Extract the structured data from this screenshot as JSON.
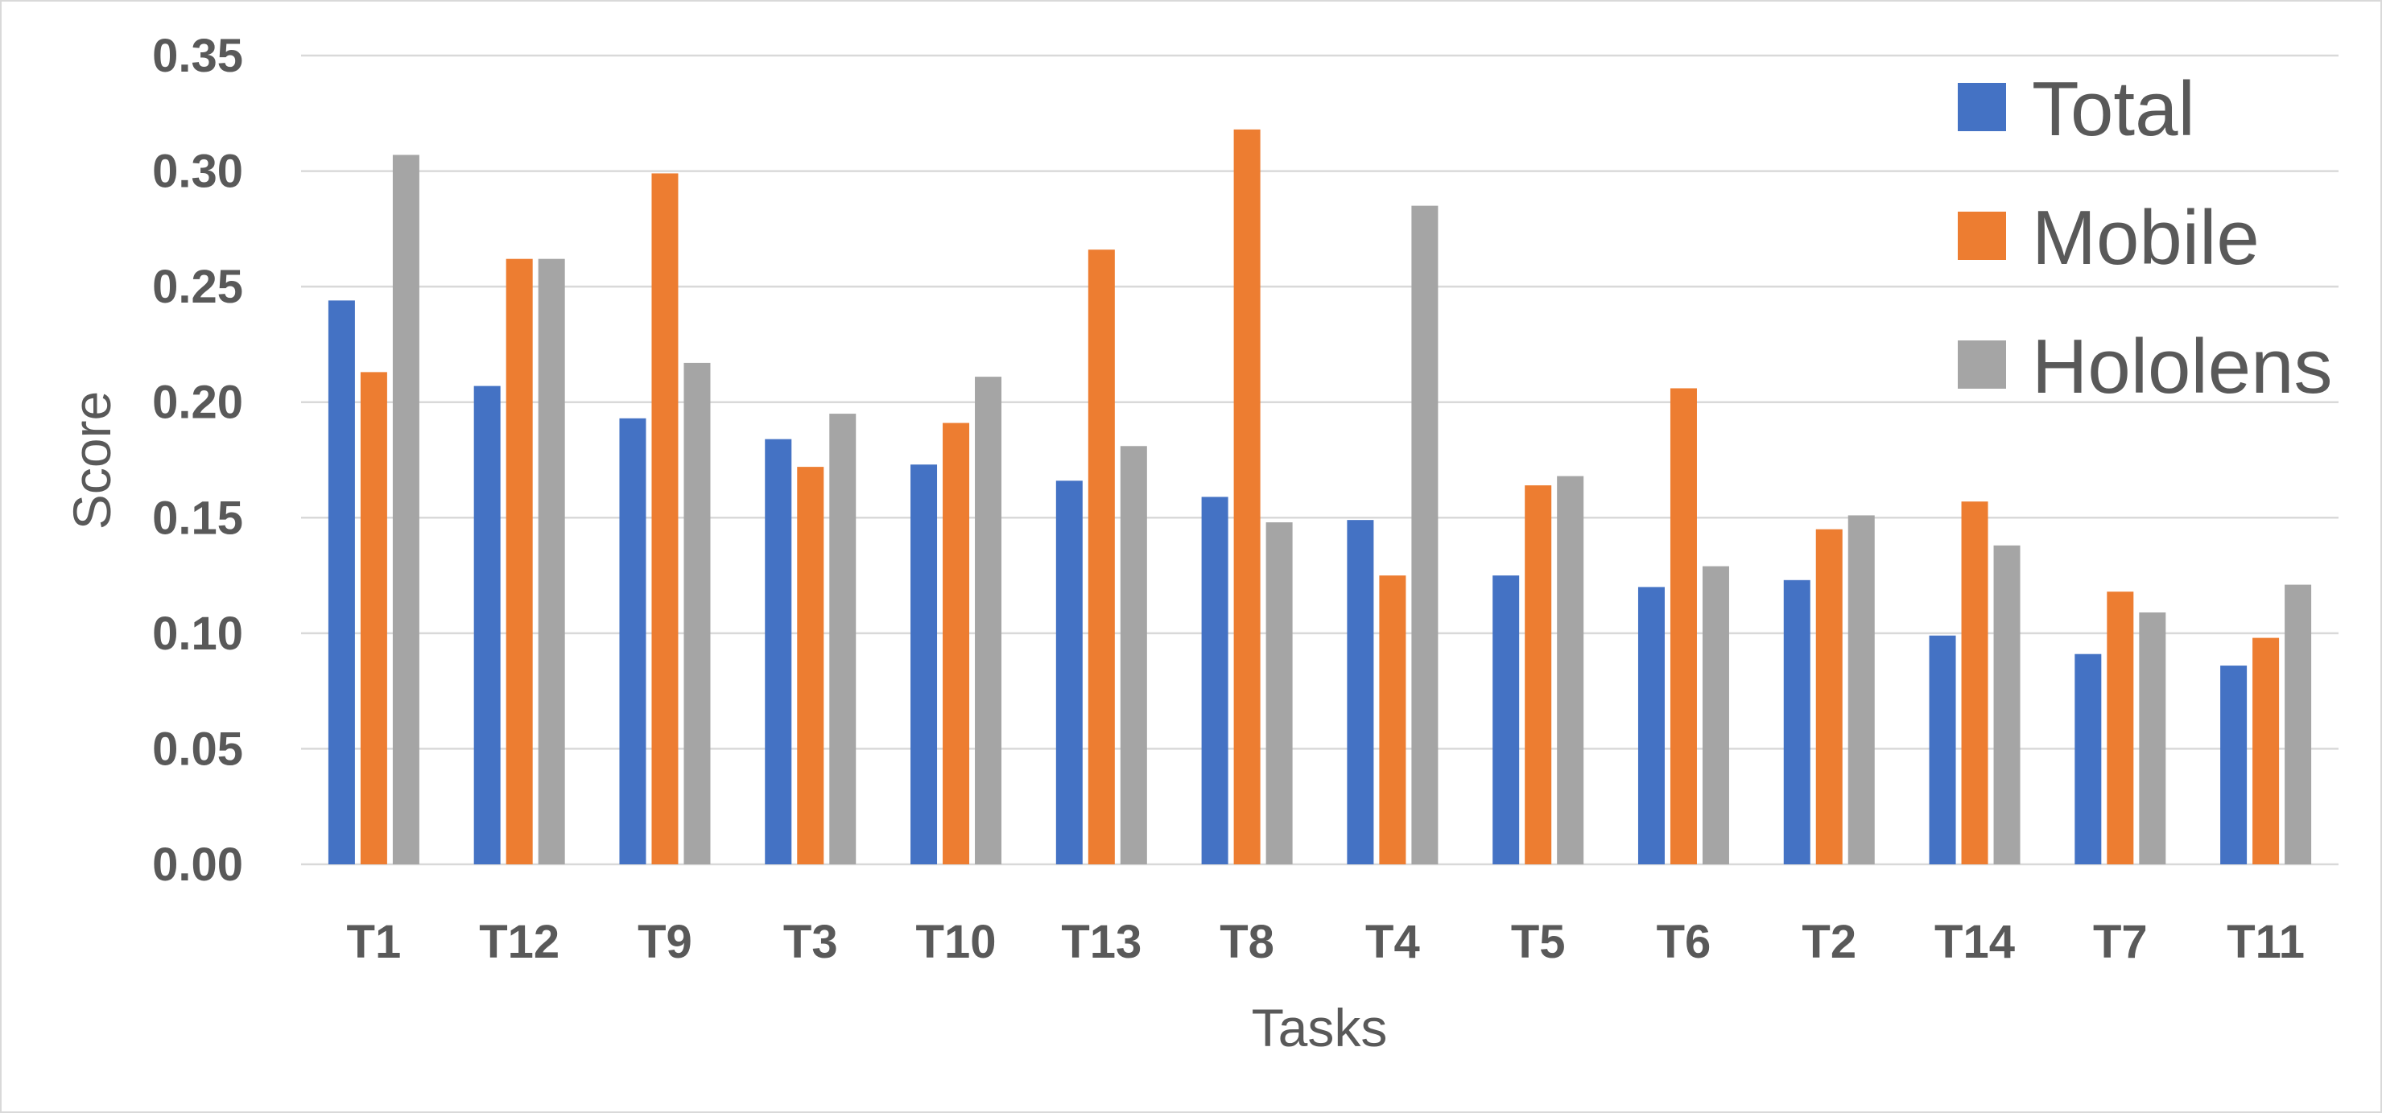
{
  "chart_data": {
    "type": "bar",
    "xlabel": "Tasks",
    "ylabel": "Score",
    "ylim": [
      0,
      0.35
    ],
    "yticks": [
      "0.00",
      "0.05",
      "0.10",
      "0.15",
      "0.20",
      "0.25",
      "0.30",
      "0.35"
    ],
    "grid": true,
    "legend_position": "top-right",
    "categories": [
      "T1",
      "T12",
      "T9",
      "T3",
      "T10",
      "T13",
      "T8",
      "T4",
      "T5",
      "T6",
      "T2",
      "T14",
      "T7",
      "T11"
    ],
    "series": [
      {
        "name": "Total",
        "color": "#4472c4",
        "values": [
          0.244,
          0.207,
          0.193,
          0.184,
          0.173,
          0.166,
          0.159,
          0.149,
          0.125,
          0.12,
          0.123,
          0.099,
          0.091,
          0.086
        ]
      },
      {
        "name": "Mobile",
        "color": "#ed7d31",
        "values": [
          0.213,
          0.262,
          0.299,
          0.172,
          0.191,
          0.266,
          0.318,
          0.125,
          0.164,
          0.206,
          0.145,
          0.157,
          0.118,
          0.098
        ]
      },
      {
        "name": "Hololens",
        "color": "#a5a5a5",
        "values": [
          0.307,
          0.262,
          0.217,
          0.195,
          0.211,
          0.181,
          0.148,
          0.285,
          0.168,
          0.129,
          0.151,
          0.138,
          0.109,
          0.121
        ]
      }
    ]
  }
}
